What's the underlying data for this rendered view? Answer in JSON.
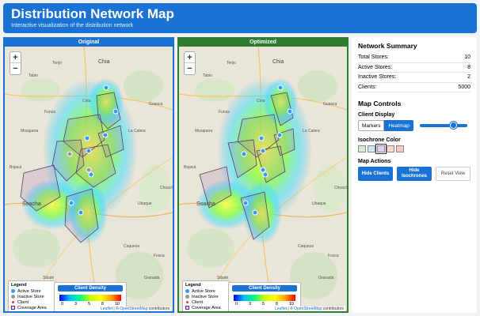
{
  "header": {
    "title": "Distribution Network Map",
    "subtitle": "Interactive visualization of the distribution network"
  },
  "panels": [
    {
      "title": "Original"
    },
    {
      "title": "Optimized"
    }
  ],
  "map": {
    "zoom_in": "+",
    "zoom_out": "−",
    "place_labels": [
      "Chia",
      "Tenjo",
      "Cota",
      "Funza",
      "Mosquera",
      "La Calera",
      "Soacha",
      "Guasca",
      "Sibaté",
      "Choachí",
      "Ubaque",
      "Caqueza",
      "Fosca",
      "Granada",
      "Tabio",
      "Bojacá"
    ],
    "legend": {
      "title": "Legend",
      "items": [
        {
          "label": "Active Store",
          "color": "#3399ff"
        },
        {
          "label": "Inactive Store",
          "color": "#999999"
        },
        {
          "label": "Client",
          "color": "#e53935"
        },
        {
          "label": "Coverage Area",
          "color": "#7b1fa2"
        }
      ]
    },
    "density": {
      "title": "Client Density",
      "ticks": [
        "0",
        "3",
        "5",
        "8",
        "10"
      ]
    },
    "attribution": {
      "leaflet": "Leaflet",
      "sep": " | © ",
      "osm": "OpenStreetMap",
      "tail": " contributors"
    }
  },
  "summary": {
    "title": "Network Summary",
    "stats": [
      {
        "label": "Total Stores:",
        "value": "10"
      },
      {
        "label": "Active Stores:",
        "value": "8"
      },
      {
        "label": "Inactive Stores:",
        "value": "2"
      },
      {
        "label": "Clients:",
        "value": "5000"
      }
    ]
  },
  "controls": {
    "title": "Map Controls",
    "client_display": {
      "label": "Client Display",
      "options": [
        "Markers",
        "Heatmap"
      ],
      "selected": "Heatmap",
      "slider_level": 0.72
    },
    "isochrone": {
      "label": "Isochrone Color",
      "colors": [
        "#d6ecd2",
        "#d0e4f5",
        "#e4d2f0",
        "#f5d9cc",
        "#f8c9c0"
      ],
      "selected_index": 2
    },
    "actions": {
      "label": "Map Actions",
      "hide_clients": "Hide Clients",
      "hide_isochrones": "Hide Isochrones",
      "reset_view": "Reset View"
    }
  }
}
